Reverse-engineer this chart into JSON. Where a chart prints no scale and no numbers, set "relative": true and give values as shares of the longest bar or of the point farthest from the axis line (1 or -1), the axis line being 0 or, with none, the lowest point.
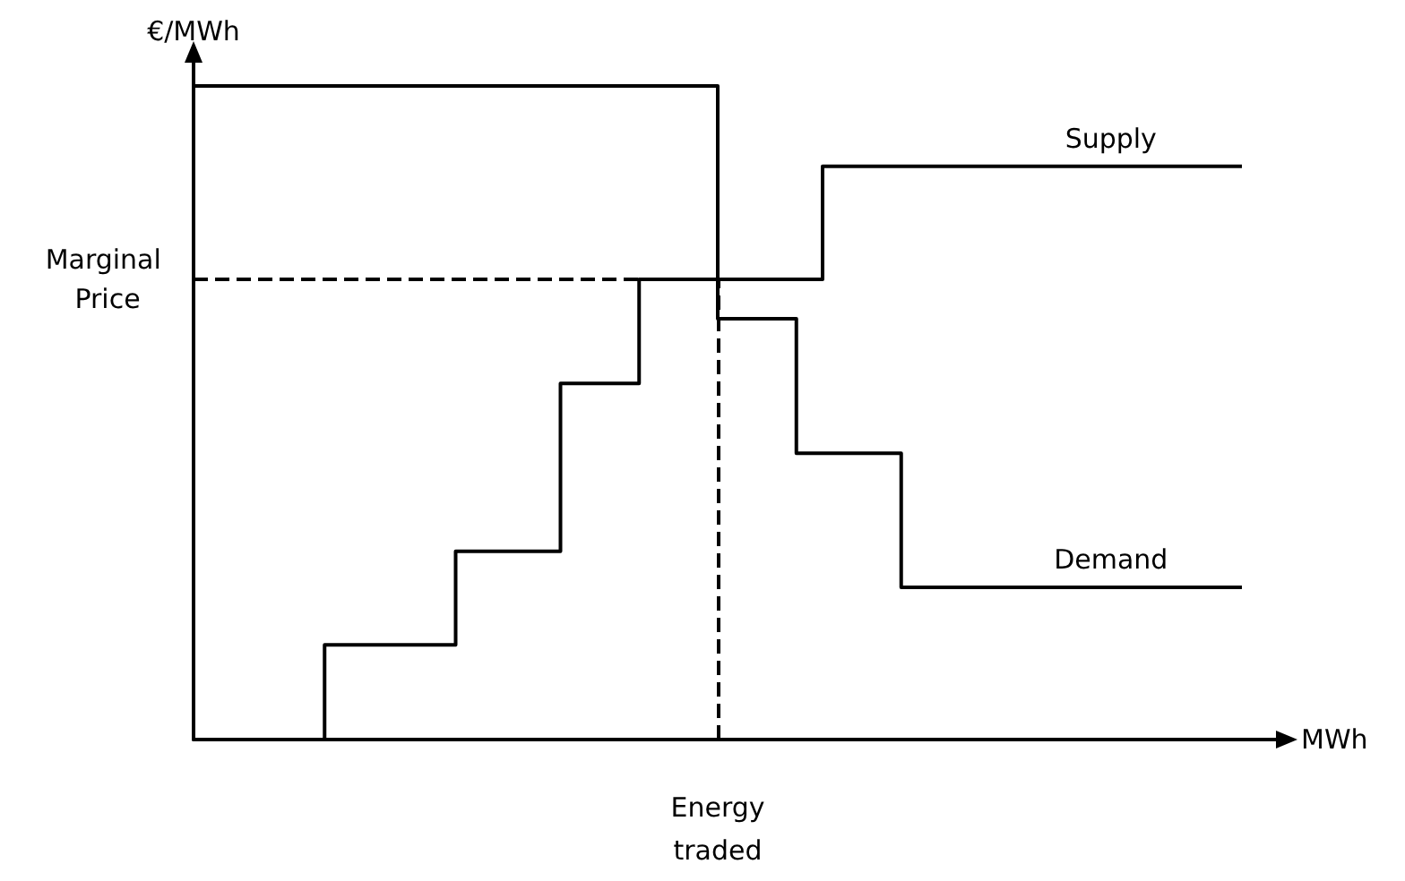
{
  "chart_data": {
    "type": "step",
    "relative": true,
    "xlabel": "MWh",
    "ylabel": "€/MWh",
    "marker": "none",
    "line_style": "solid",
    "categories": [
      null,
      null,
      null,
      null,
      null,
      null,
      null,
      null,
      null,
      null,
      null,
      null,
      null,
      null,
      null,
      null,
      null,
      null,
      null,
      null,
      null,
      null,
      null,
      null,
      null,
      null,
      null,
      null,
      null,
      null,
      null,
      null,
      null,
      null,
      null,
      null,
      null,
      null,
      null,
      null,
      null
    ],
    "series": [
      {
        "name": "Supply",
        "color": "#000000",
        "values": [
          null,
          null,
          null,
          null,
          0,
          0.145,
          0.145,
          0.145,
          0.145,
          0.145,
          0.288,
          0.288,
          0.288,
          0.288,
          0.545,
          0.545,
          0.545,
          0.704,
          0.704,
          0.704,
          0.704,
          0.704,
          0.704,
          0.704,
          0.877,
          0.877,
          0.877,
          0.877,
          0.877,
          0.877,
          0.877,
          0.877,
          0.877,
          0.877,
          0.877,
          0.877,
          0.877,
          0.877,
          0.877,
          0.877,
          0.877
        ]
      },
      {
        "name": "Demand",
        "color": "#000000",
        "values": [
          1,
          1,
          1,
          1,
          1,
          1,
          1,
          1,
          1,
          1,
          1,
          1,
          1,
          1,
          1,
          1,
          1,
          1,
          1,
          1,
          0.644,
          0.644,
          0.644,
          0.438,
          0.438,
          0.438,
          0.438,
          0.233,
          0.233,
          0.233,
          0.233,
          0.233,
          0.233,
          0.233,
          0.233,
          0.233,
          0.233,
          0.233,
          0.233,
          0.233,
          0.233
        ]
      }
    ],
    "ref_lines": [
      {
        "axis": "y",
        "value": 0.704,
        "label": "Marginal Price",
        "line_style": "dashed",
        "color": "#000000"
      }
    ],
    "annotations": [
      "Energy traded"
    ]
  }
}
